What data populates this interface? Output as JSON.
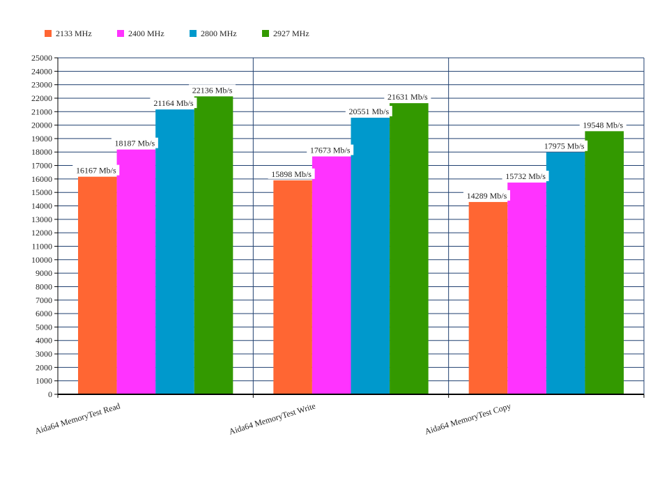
{
  "chart_data": {
    "type": "bar",
    "categories": [
      "Aida64 MemoryTest Read",
      "Aida64 MemoryTest Write",
      "Aida64 MemoryTest Copy"
    ],
    "series": [
      {
        "name": "2133 MHz",
        "color": "#ff6633",
        "values": [
          16167,
          15898,
          14289
        ]
      },
      {
        "name": "2400 MHz",
        "color": "#ff33ff",
        "values": [
          18187,
          17673,
          15732
        ]
      },
      {
        "name": "2800 MHz",
        "color": "#0099cc",
        "values": [
          21164,
          20551,
          17975
        ]
      },
      {
        "name": "2927 MHz",
        "color": "#339900",
        "values": [
          22136,
          21631,
          19548
        ]
      }
    ],
    "value_suffix": " Mb/s",
    "ylim": [
      0,
      25000
    ],
    "ytick_step": 1000,
    "grid": true,
    "grid_color": "#1f3f6f",
    "legend_position": "top-left",
    "title": "",
    "xlabel": "",
    "ylabel": ""
  }
}
